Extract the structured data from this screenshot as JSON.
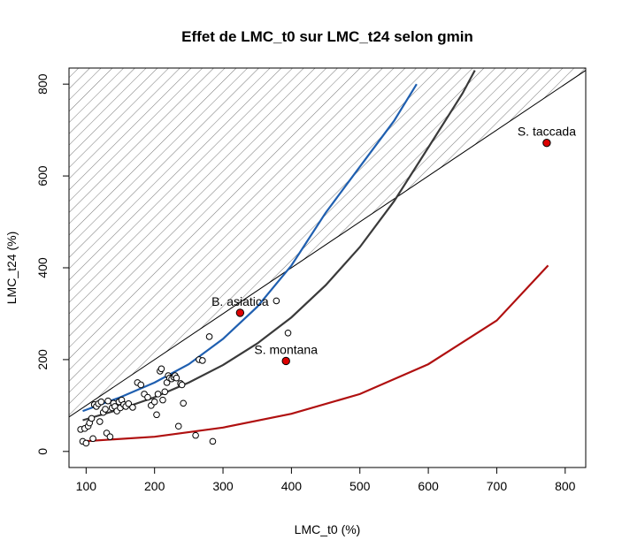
{
  "chart_data": {
    "type": "scatter",
    "title": "Effet de LMC_t0 sur LMC_t24 selon gmin",
    "xlabel": "LMC_t0 (%)",
    "ylabel": "LMC_t24 (%)",
    "xlim": [
      75,
      830
    ],
    "ylim": [
      -35,
      835
    ],
    "xticks": [
      100,
      200,
      300,
      400,
      500,
      600,
      700,
      800
    ],
    "yticks": [
      0,
      200,
      400,
      600,
      800
    ],
    "hatched_region": "LMC_t24 > LMC_t0",
    "points": [
      [
        92,
        48
      ],
      [
        95,
        22
      ],
      [
        98,
        50
      ],
      [
        100,
        18
      ],
      [
        103,
        55
      ],
      [
        105,
        62
      ],
      [
        108,
        72
      ],
      [
        110,
        28
      ],
      [
        112,
        102
      ],
      [
        115,
        98
      ],
      [
        118,
        104
      ],
      [
        120,
        65
      ],
      [
        122,
        108
      ],
      [
        125,
        85
      ],
      [
        128,
        92
      ],
      [
        130,
        40
      ],
      [
        132,
        110
      ],
      [
        135,
        32
      ],
      [
        138,
        95
      ],
      [
        140,
        105
      ],
      [
        142,
        98
      ],
      [
        145,
        88
      ],
      [
        148,
        108
      ],
      [
        150,
        95
      ],
      [
        152,
        112
      ],
      [
        155,
        102
      ],
      [
        158,
        98
      ],
      [
        162,
        104
      ],
      [
        168,
        96
      ],
      [
        175,
        150
      ],
      [
        180,
        145
      ],
      [
        185,
        125
      ],
      [
        190,
        118
      ],
      [
        195,
        100
      ],
      [
        200,
        108
      ],
      [
        203,
        80
      ],
      [
        205,
        125
      ],
      [
        208,
        175
      ],
      [
        210,
        180
      ],
      [
        212,
        112
      ],
      [
        215,
        130
      ],
      [
        218,
        150
      ],
      [
        220,
        165
      ],
      [
        222,
        160
      ],
      [
        225,
        158
      ],
      [
        228,
        162
      ],
      [
        230,
        165
      ],
      [
        232,
        160
      ],
      [
        235,
        55
      ],
      [
        238,
        148
      ],
      [
        240,
        145
      ],
      [
        242,
        105
      ],
      [
        260,
        35
      ],
      [
        265,
        200
      ],
      [
        270,
        198
      ],
      [
        280,
        250
      ],
      [
        285,
        22
      ],
      [
        378,
        328
      ],
      [
        395,
        258
      ]
    ],
    "highlighted": [
      {
        "label": "B. asiatica",
        "x": 325,
        "y": 302
      },
      {
        "label": "S. montana",
        "x": 392,
        "y": 197
      },
      {
        "label": "S. taccada",
        "x": 773,
        "y": 672
      }
    ],
    "curves": [
      {
        "color": "#1f5fb0",
        "x": [
          95,
          150,
          200,
          250,
          300,
          350,
          400,
          450,
          500,
          550,
          583
        ],
        "y": [
          88,
          118,
          150,
          190,
          245,
          315,
          405,
          520,
          620,
          720,
          800
        ]
      },
      {
        "color": "#3a3a3a",
        "x": [
          95,
          150,
          200,
          250,
          300,
          350,
          400,
          450,
          500,
          550,
          600,
          650,
          668
        ],
        "y": [
          68,
          92,
          118,
          150,
          188,
          235,
          292,
          362,
          445,
          545,
          662,
          780,
          830
        ]
      },
      {
        "color": "#b01010",
        "x": [
          95,
          200,
          300,
          400,
          500,
          600,
          700,
          775
        ],
        "y": [
          22,
          32,
          52,
          82,
          125,
          190,
          285,
          405
        ]
      }
    ],
    "colors": {
      "highlight": "#dd0000",
      "hatch": "#555555"
    }
  }
}
